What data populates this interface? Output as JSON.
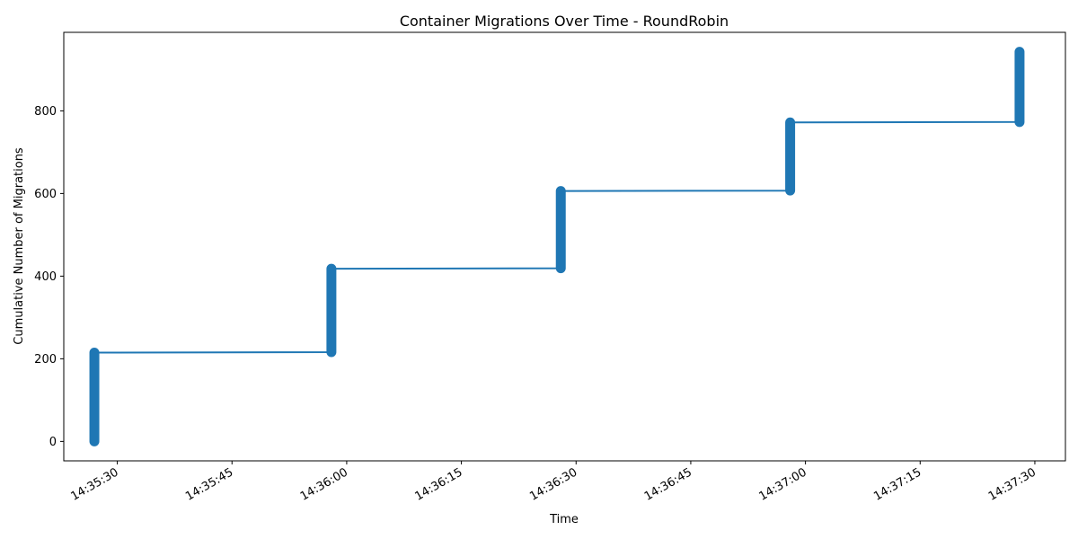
{
  "chart_data": {
    "type": "line",
    "title": "Container Migrations Over Time - RoundRobin",
    "xlabel": "Time",
    "ylabel": "Cumulative Number of Migrations",
    "x_ticks": [
      "14:35:30",
      "14:35:45",
      "14:36:00",
      "14:36:15",
      "14:36:30",
      "14:36:45",
      "14:37:00",
      "14:37:15",
      "14:37:30"
    ],
    "y_ticks": [
      0,
      200,
      400,
      600,
      800
    ],
    "xlim": [
      "14:35:23",
      "14:37:34"
    ],
    "ylim": [
      -47,
      990
    ],
    "grid": false,
    "legend": "none",
    "series": [
      {
        "color": "#1f77b4",
        "bursts": [
          {
            "time": "14:35:27",
            "start": 0,
            "end": 215
          },
          {
            "time": "14:35:58",
            "start": 216,
            "end": 418
          },
          {
            "time": "14:36:28",
            "start": 419,
            "end": 606
          },
          {
            "time": "14:36:58",
            "start": 607,
            "end": 772
          },
          {
            "time": "14:37:28",
            "start": 773,
            "end": 943
          }
        ]
      }
    ]
  }
}
